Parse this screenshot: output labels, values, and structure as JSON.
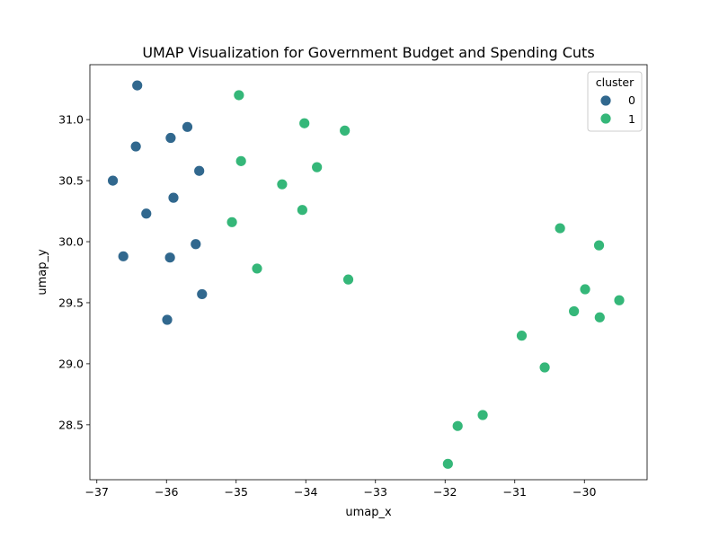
{
  "chart_data": {
    "type": "scatter",
    "title": "UMAP Visualization for Government Budget and Spending Cuts",
    "xlabel": "umap_x",
    "ylabel": "umap_y",
    "xlim": [
      -37.1,
      -29.1
    ],
    "ylim": [
      28.05,
      31.45
    ],
    "x_ticks": [
      -37,
      -36,
      -35,
      -34,
      -33,
      -32,
      -31,
      -30
    ],
    "y_ticks": [
      28.5,
      29.0,
      29.5,
      30.0,
      30.5,
      31.0
    ],
    "x_tick_labels": [
      "−37",
      "−36",
      "−35",
      "−34",
      "−33",
      "−32",
      "−31",
      "−30"
    ],
    "y_tick_labels": [
      "28.5",
      "29.0",
      "29.5",
      "30.0",
      "30.5",
      "31.0"
    ],
    "grid": false,
    "legend": {
      "title": "cluster",
      "position": "top-right"
    },
    "series": [
      {
        "name": "0",
        "color": "#31688e",
        "points": [
          [
            -36.42,
            31.28
          ],
          [
            -35.7,
            30.94
          ],
          [
            -35.94,
            30.85
          ],
          [
            -36.44,
            30.78
          ],
          [
            -35.53,
            30.58
          ],
          [
            -36.77,
            30.5
          ],
          [
            -35.9,
            30.36
          ],
          [
            -36.29,
            30.23
          ],
          [
            -35.58,
            29.98
          ],
          [
            -36.62,
            29.88
          ],
          [
            -35.95,
            29.87
          ],
          [
            -35.49,
            29.57
          ],
          [
            -35.99,
            29.36
          ]
        ]
      },
      {
        "name": "1",
        "color": "#35b779",
        "points": [
          [
            -34.96,
            31.2
          ],
          [
            -34.02,
            30.97
          ],
          [
            -33.44,
            30.91
          ],
          [
            -34.93,
            30.66
          ],
          [
            -33.84,
            30.61
          ],
          [
            -34.34,
            30.47
          ],
          [
            -34.05,
            30.26
          ],
          [
            -35.06,
            30.16
          ],
          [
            -34.7,
            29.78
          ],
          [
            -33.39,
            29.69
          ],
          [
            -30.35,
            30.11
          ],
          [
            -29.79,
            29.97
          ],
          [
            -29.99,
            29.61
          ],
          [
            -29.5,
            29.52
          ],
          [
            -30.15,
            29.43
          ],
          [
            -29.78,
            29.38
          ],
          [
            -30.9,
            29.23
          ],
          [
            -30.57,
            28.97
          ],
          [
            -31.46,
            28.58
          ],
          [
            -31.82,
            28.49
          ],
          [
            -31.96,
            28.18
          ]
        ]
      }
    ]
  }
}
